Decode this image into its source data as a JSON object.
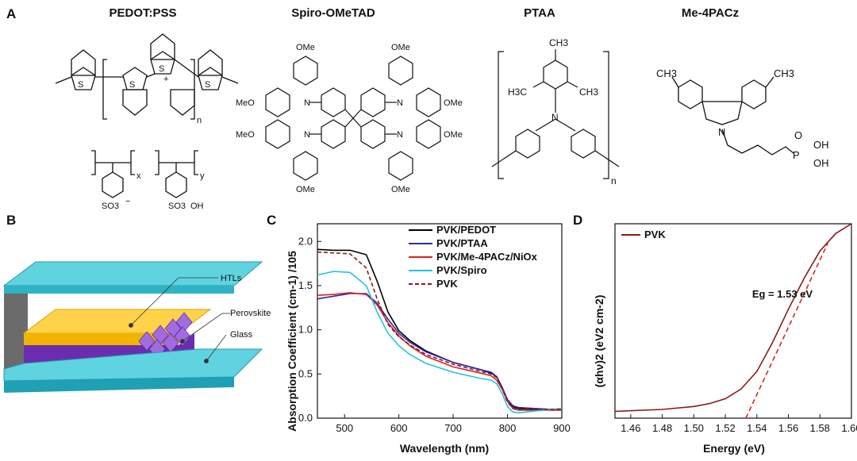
{
  "panels": {
    "a": {
      "label": "A",
      "molecules": [
        {
          "name": "PEDOT:PSS"
        },
        {
          "name": "Spiro-OMeTAD"
        },
        {
          "name": "PTAA"
        },
        {
          "name": "Me-4PACz"
        }
      ],
      "atom_labels": {
        "S": "S",
        "plus": "+",
        "n": "n",
        "x": "x",
        "y": "y",
        "sulfonate": "SO3",
        "minus": "−",
        "oh": "OH",
        "ome": "OMe",
        "meo": "MeO",
        "N": "N",
        "ch3": "CH3",
        "h3c": "H3C",
        "P": "P",
        "O": "O"
      }
    },
    "b": {
      "label": "B",
      "layers": [
        "HTLs",
        "Perovskite",
        "Glass"
      ],
      "colors": {
        "glass": "#35c0d2",
        "htl": "#f8c21c",
        "perovskite": "#7a3dc0"
      }
    },
    "c": {
      "label": "C"
    },
    "d": {
      "label": "D"
    }
  },
  "chart_data": [
    {
      "type": "line",
      "panel": "C",
      "xlabel": "Wavelength (nm)",
      "ylabel": "Absorption Coefficient (cm-1) /105",
      "xlim": [
        450,
        900
      ],
      "ylim": [
        0,
        2.2
      ],
      "xticks": [
        500,
        600,
        700,
        800,
        900
      ],
      "yticks": [
        0.0,
        0.5,
        1.0,
        1.5,
        2.0
      ],
      "legend_position": "top-right",
      "x": [
        450,
        480,
        510,
        540,
        560,
        580,
        600,
        620,
        650,
        700,
        750,
        770,
        780,
        790,
        800,
        810,
        820,
        850,
        880,
        900
      ],
      "series": [
        {
          "name": "PVK/PEDOT",
          "color": "#000000",
          "dash": false,
          "values": [
            1.91,
            1.9,
            1.9,
            1.85,
            1.55,
            1.2,
            0.99,
            0.88,
            0.76,
            0.63,
            0.55,
            0.51,
            0.47,
            0.35,
            0.2,
            0.13,
            0.11,
            0.1,
            0.1,
            0.1
          ]
        },
        {
          "name": "PVK/PTAA",
          "color": "#2b2ba8",
          "dash": false,
          "values": [
            1.35,
            1.38,
            1.41,
            1.41,
            1.3,
            1.12,
            0.96,
            0.86,
            0.75,
            0.63,
            0.55,
            0.52,
            0.47,
            0.35,
            0.21,
            0.14,
            0.12,
            0.11,
            0.1,
            0.1
          ]
        },
        {
          "name": "PVK/Me-4PACz/NiOx",
          "color": "#e02020",
          "dash": false,
          "values": [
            1.39,
            1.4,
            1.42,
            1.4,
            1.28,
            1.08,
            0.93,
            0.82,
            0.7,
            0.58,
            0.51,
            0.48,
            0.43,
            0.33,
            0.19,
            0.11,
            0.09,
            0.09,
            0.09,
            0.09
          ]
        },
        {
          "name": "PVK/Spiro",
          "color": "#22c4dc",
          "dash": false,
          "values": [
            1.62,
            1.66,
            1.65,
            1.5,
            1.2,
            0.96,
            0.82,
            0.72,
            0.62,
            0.52,
            0.45,
            0.43,
            0.39,
            0.28,
            0.13,
            0.07,
            0.06,
            0.08,
            0.1,
            0.11
          ]
        },
        {
          "name": "PVK",
          "color": "#8b1a1a",
          "dash": true,
          "values": [
            1.88,
            1.87,
            1.86,
            1.7,
            1.35,
            1.06,
            0.92,
            0.83,
            0.72,
            0.61,
            0.53,
            0.5,
            0.46,
            0.34,
            0.18,
            0.11,
            0.1,
            0.1,
            0.1,
            0.1
          ]
        }
      ]
    },
    {
      "type": "line",
      "panel": "D",
      "xlabel": "Energy (eV)",
      "ylabel": "(αhν)2 (eV2 cm-2)",
      "xlim": [
        1.45,
        1.6
      ],
      "xticks": [
        1.46,
        1.48,
        1.5,
        1.52,
        1.54,
        1.56,
        1.58,
        1.6
      ],
      "ylim": [
        0,
        1
      ],
      "legend_position": "top-left",
      "annotation": "Eg = 1.53 eV",
      "series": [
        {
          "name": "PVK",
          "color": "#8b1a1a",
          "dash": false,
          "x": [
            1.45,
            1.48,
            1.5,
            1.51,
            1.52,
            1.53,
            1.54,
            1.55,
            1.56,
            1.57,
            1.58,
            1.59,
            1.6
          ],
          "values": [
            0.035,
            0.045,
            0.06,
            0.075,
            0.1,
            0.15,
            0.24,
            0.39,
            0.56,
            0.72,
            0.86,
            0.95,
            1.0
          ]
        },
        {
          "name": "",
          "color": "#e02020",
          "dash": true,
          "x": [
            1.533,
            1.585
          ],
          "values": [
            0.0,
            0.9
          ]
        }
      ]
    }
  ]
}
